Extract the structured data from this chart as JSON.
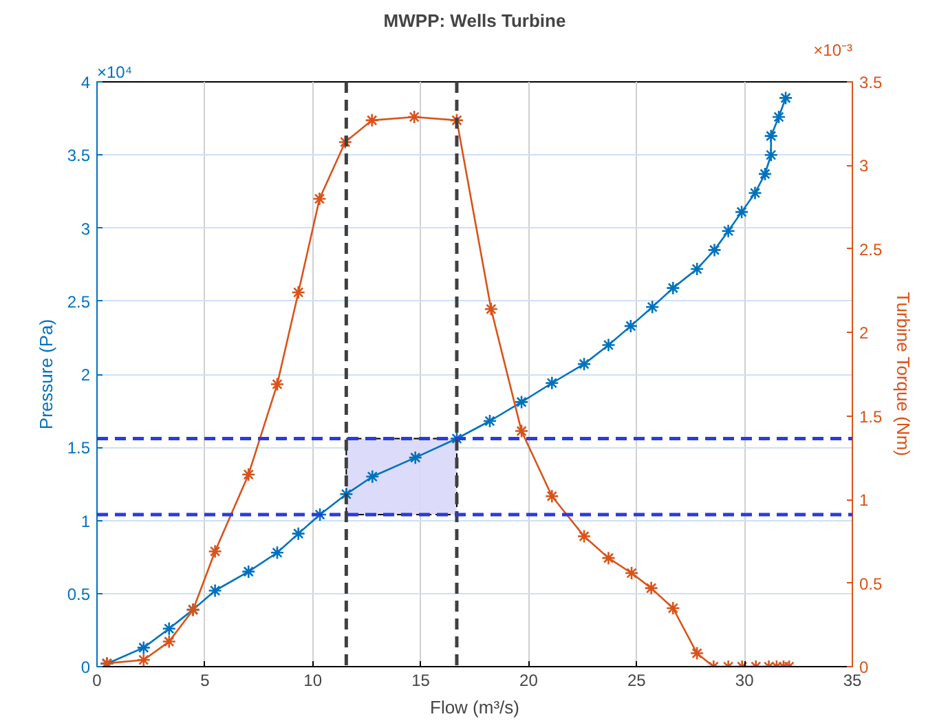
{
  "chart_data": {
    "type": "line",
    "title": "MWPP: Wells Turbine",
    "xlabel": "Flow (m³/s)",
    "ylabel": "Pressure (Pa)",
    "y2label": "Turbine Torque (Nm)",
    "annotations": [
      "×10⁴",
      "×10⁻³"
    ],
    "xlim": [
      0,
      35
    ],
    "xticks": [
      0,
      5,
      10,
      15,
      20,
      25,
      30,
      35
    ],
    "ylim": [
      0,
      4
    ],
    "yticks": [
      0,
      0.5,
      1,
      1.5,
      2,
      2.5,
      3,
      3.5,
      4
    ],
    "y2lim": [
      0,
      3.5
    ],
    "y2ticks": [
      0,
      0.5,
      1,
      1.5,
      2,
      2.5,
      3,
      3.5
    ],
    "grid": true,
    "marker": "cross",
    "line_style": "solid",
    "series": [
      {
        "color": "#0072bd",
        "x": [
          0.46,
          2.16,
          3.34,
          4.45,
          5.47,
          7.02,
          8.35,
          9.33,
          10.33,
          11.55,
          12.76,
          14.75,
          16.67,
          18.2,
          19.67,
          21.08,
          22.57,
          23.7,
          24.73,
          25.73,
          26.69,
          27.8,
          28.61,
          29.25,
          29.87,
          30.49,
          30.95,
          31.23,
          31.23,
          31.59,
          31.91
        ],
        "values": [
          0.02,
          0.13,
          0.26,
          0.39,
          0.52,
          0.65,
          0.78,
          0.91,
          1.04,
          1.18,
          1.3,
          1.43,
          1.56,
          1.68,
          1.81,
          1.94,
          2.07,
          2.2,
          2.33,
          2.46,
          2.59,
          2.72,
          2.85,
          2.98,
          3.11,
          3.24,
          3.37,
          3.5,
          3.63,
          3.76,
          3.89
        ]
      },
      {
        "color": "#d95319",
        "axis": "y2",
        "x": [
          0.46,
          2.16,
          3.34,
          4.45,
          5.47,
          7.02,
          8.35,
          9.33,
          10.31,
          11.5,
          12.74,
          14.7,
          16.67,
          18.26,
          19.67,
          21.08,
          22.57,
          23.7,
          24.77,
          25.68,
          26.69,
          27.8,
          28.57,
          29.25,
          29.89,
          30.53,
          31.13,
          31.49,
          31.81,
          32.07
        ],
        "values": [
          0.02,
          0.04,
          0.15,
          0.34,
          0.69,
          1.15,
          1.69,
          2.24,
          2.8,
          3.14,
          3.27,
          3.29,
          3.27,
          2.14,
          1.41,
          1.02,
          0.78,
          0.65,
          0.56,
          0.47,
          0.35,
          0.08,
          0,
          0,
          0,
          0,
          0,
          0,
          0,
          0
        ]
      }
    ],
    "ref_lines": [
      {
        "axis": "x",
        "value": 11.55,
        "color": "#404040",
        "line_style": "dashed"
      },
      {
        "axis": "x",
        "value": 16.67,
        "color": "#404040",
        "line_style": "dashed"
      },
      {
        "axis": "y",
        "value": 1.56,
        "color": "#2a3be0",
        "line_style": "dashed"
      },
      {
        "axis": "y",
        "value": 1.04,
        "color": "#2a3be0",
        "line_style": "dashed"
      }
    ],
    "bands": [
      {
        "axis": "x",
        "from": 11.55,
        "to": 16.67,
        "color": "#d8d8fa"
      }
    ]
  }
}
